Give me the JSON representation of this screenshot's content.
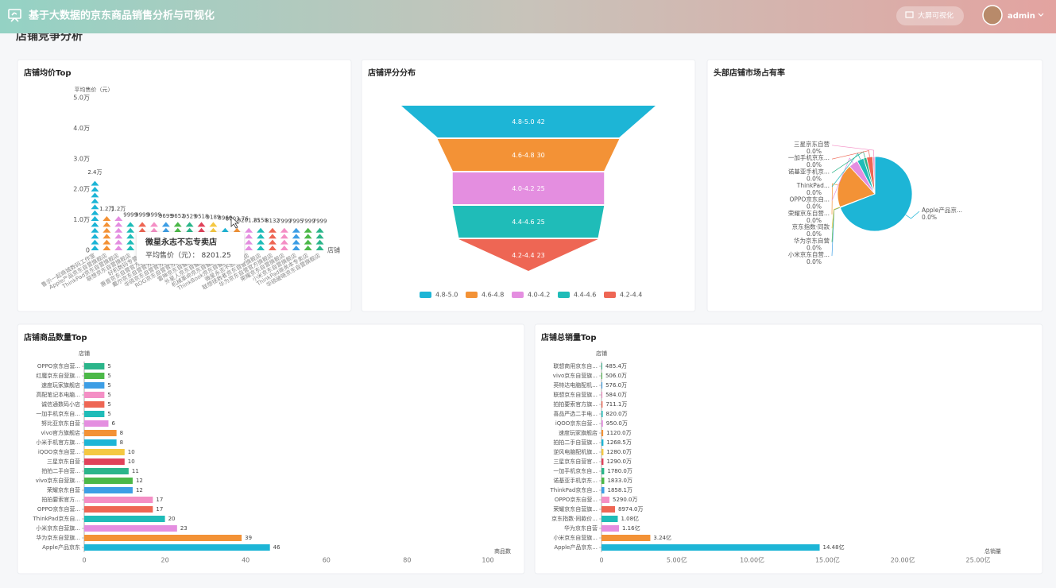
{
  "header": {
    "title": "基于大数据的京东商品销售分析与可视化",
    "button": "大屏可视化",
    "user": "admin"
  },
  "section_title": "店铺竞争分析",
  "chart_data": [
    {
      "type": "pictorialBar",
      "title": "店铺均价Top",
      "y_label": "平均售价（元）",
      "x_label": "店铺",
      "categories": [
        "鲁示一起商城数码工作室",
        "Apple产品京东自营旗舰店",
        "ThinkPad京东自营旗舰店",
        "联想京东自营旗舰店",
        "好机数码专营店",
        "惠普京东自营官方旗舰店",
        "戴尔京东自营官方旗舰店",
        "华硕京东自营官方旗舰店",
        "ROG京东自营官方旗舰店",
        "雷神京东自营旗舰店",
        "外星人京东自营旗舰店",
        "机械革命京东自营旗舰店",
        "ThinkBook京东自营旗舰店",
        "微星永志不忘专卖店",
        "联想拯救者京东自营旗舰店",
        "华为京东自营官方旗舰店",
        "荣耀京东自营旗舰店",
        "小米京东自营旗舰店",
        "ThinkPad商务本专卖店",
        "华硕破晓京东自营旗舰店"
      ],
      "values": [
        24000,
        12000,
        12000,
        9999,
        9999,
        9999,
        9699,
        9652,
        9529,
        9518,
        9189,
        8966,
        8703.76,
        8201.25,
        8158,
        8132,
        7999,
        7995,
        7999,
        7999
      ],
      "value_labels": [
        "2.4万",
        "1.2万",
        "1.2万",
        "9999",
        "9999",
        "9999",
        "9699",
        "9652",
        "9529",
        "9518",
        "9189",
        "8966",
        "8703.76",
        "8201.25",
        "8158",
        "8132",
        "7999",
        "7995",
        "7999",
        "7999"
      ],
      "ylim": [
        0,
        50000
      ],
      "yticks": [
        0,
        {
          "value": 10000,
          "label": "1.0万"
        },
        {
          "value": 20000,
          "label": "2.0万"
        },
        {
          "value": 30000,
          "label": "3.0万"
        },
        {
          "value": 40000,
          "label": "4.0万"
        },
        {
          "value": 50000,
          "label": "5.0万"
        }
      ],
      "palette": [
        "#1db5d6",
        "#f39236",
        "#e48ee0",
        "#1fbcb8",
        "#ee6654",
        "#f48fc5",
        "#3d9ee5",
        "#4cb848",
        "#2bb58a",
        "#e0425a",
        "#f5c842"
      ],
      "tooltip": {
        "title": "微星永志不忘专卖店",
        "label": "平均售价（元）：",
        "value": 8201.25
      }
    },
    {
      "type": "funnel",
      "title": "店铺评分分布",
      "categories": [
        "4.8-5.0",
        "4.6-4.8",
        "4.0-4.2",
        "4.4-4.6",
        "4.2-4.4"
      ],
      "values": [
        42,
        30,
        25,
        25,
        23
      ],
      "palette": [
        "#1db5d6",
        "#f39236",
        "#e48ee0",
        "#1fbcb8",
        "#ee6654"
      ]
    },
    {
      "type": "pie",
      "title": "头部店铺市场占有率",
      "categories": [
        "Apple产品京...",
        "小米京东自营...",
        "华为京东自营",
        "京东指数·同款",
        "荣耀京东自营...",
        "OPPO京东自...",
        "ThinkPad...",
        "诺基亚手机京...",
        "一加手机京东...",
        "三星京东自营"
      ],
      "values": [
        0.031,
        4e-05,
        4e-05,
        4e-05,
        0.0085,
        0.0018,
        0.0013,
        0.0006,
        0.0012,
        0.0004
      ],
      "value_labels": [
        "0.0%",
        "0.0%",
        "0.0%",
        "0.0%",
        "0.0%",
        "0.0%",
        "0.0%",
        "0.0%",
        "0.0%",
        "0.0%"
      ],
      "palette": [
        "#1db5d6",
        "#3d9ee5",
        "#4cb848",
        "#f5c842",
        "#f39236",
        "#e48ee0",
        "#1fbcb8",
        "#2bb58a",
        "#ee6654",
        "#f48fc5"
      ]
    },
    {
      "type": "hbar",
      "title": "店铺商品数量Top",
      "y_label": "店铺",
      "x_label": "商品数",
      "categories": [
        "Apple产品京东",
        "华为京东自营旗...",
        "小米京东自营旗...",
        "ThinkPad京东自...",
        "OPPO京东自营...",
        "拍拍要索官方...",
        "荣耀京东自营",
        "vivo京东自营旗...",
        "拍拍二手自营...",
        "三星京东自营",
        "iQOO京东自营...",
        "小米手机官方旗...",
        "vivo官方旗舰店",
        "努比亚京东自营",
        "一加手机京东自...",
        "诚信通数码小店",
        "高配笔记本电脑...",
        "速度玩家旗舰店",
        "红魔京东自营旗...",
        "OPPO京东自营..."
      ],
      "values": [
        46,
        39,
        23,
        20,
        17,
        17,
        12,
        12,
        11,
        10,
        10,
        8,
        8,
        6,
        5,
        5,
        5,
        5,
        5,
        5
      ],
      "xlim": [
        0,
        100
      ],
      "xticks": [
        0,
        20,
        40,
        60,
        80,
        100
      ],
      "palette": [
        "#1db5d6",
        "#f39236",
        "#e48ee0",
        "#1fbcb8",
        "#ee6654",
        "#f48fc5",
        "#3d9ee5",
        "#4cb848",
        "#2bb58a",
        "#e0425a",
        "#f5c842"
      ]
    },
    {
      "type": "hbar",
      "title": "店铺总销量Top",
      "y_label": "店铺",
      "x_label": "总销量",
      "categories": [
        "Apple产品京东...",
        "小米京东自营旗...",
        "华为京东自营",
        "京东指数·同款价...",
        "荣耀京东自营旗...",
        "OPPO京东自营...",
        "ThinkPad京东自...",
        "诺基亚手机京东...",
        "一加手机京东自...",
        "三星京东自营官...",
        "逆风电脑配机旗...",
        "拍拍二手自营旗...",
        "速度玩家旗舰店",
        "iQOO京东自营...",
        "喜品严选二手电...",
        "拍拍要索官方旗...",
        "联想京东自营旗...",
        "英特达电脑配机...",
        "vivo京东自营旗...",
        "联想商用京东自..."
      ],
      "values": [
        1448000000,
        324000000,
        116000000,
        108000000,
        89740000,
        52900000,
        18581000,
        18330000,
        17800000,
        12900000,
        12800000,
        12685000,
        11200000,
        9500000,
        8200000,
        7111000,
        5840000,
        5760000,
        5060000,
        4854000
      ],
      "value_labels": [
        "14.48亿",
        "3.24亿",
        "1.16亿",
        "1.08亿",
        "8974.0万",
        "5290.0万",
        "1858.1万",
        "1833.0万",
        "1780.0万",
        "1290.0万",
        "1280.0万",
        "1268.5万",
        "1120.0万",
        "950.0万",
        "820.0万",
        "711.1万",
        "584.0万",
        "576.0万",
        "506.0万",
        "485.4万"
      ],
      "xlim": [
        0,
        2500000000
      ],
      "xticks": [
        0,
        {
          "value": 500000000,
          "label": "5.00亿"
        },
        {
          "value": 1000000000,
          "label": "10.00亿"
        },
        {
          "value": 1500000000,
          "label": "15.00亿"
        },
        {
          "value": 2000000000,
          "label": "20.00亿"
        },
        {
          "value": 2500000000,
          "label": "25.00亿"
        }
      ],
      "palette": [
        "#1db5d6",
        "#f39236",
        "#e48ee0",
        "#1fbcb8",
        "#ee6654",
        "#f48fc5",
        "#3d9ee5",
        "#4cb848",
        "#2bb58a",
        "#e0425a",
        "#f5c842"
      ]
    }
  ]
}
